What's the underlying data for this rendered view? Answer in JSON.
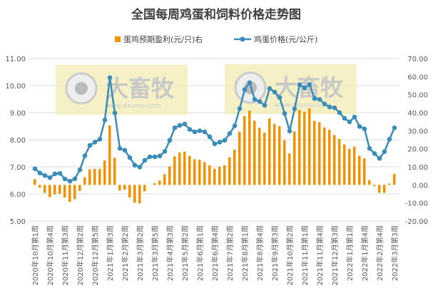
{
  "chart_data": {
    "type": "bar+line",
    "title": "全国每周鸡蛋和饲料价格走势图",
    "legend_position": "top",
    "grid": true,
    "x_tick_labels": [
      "2020年10月第1周",
      "2020年10月第4周",
      "2020年11月第3周",
      "2020年12月第2周",
      "2020年12月第5周",
      "2021年1月第3周",
      "2021年2月第2周",
      "2021年3月第2周",
      "2021年3月第5周",
      "2021年4月第3周",
      "2021年5月第2周",
      "2021年6月第1周",
      "2021年6月第4周",
      "2021年7月第2周",
      "2021年8月第1周",
      "2021年8月第4周",
      "2021年9月第3周",
      "2021年10月第2周",
      "2021年11月第1周",
      "2021年11月第4周",
      "2021年12月第3周",
      "2022年1月第1周",
      "2022年1月第4周",
      "2022年2月第4周",
      "2022年3月第3周"
    ],
    "x_tick_every": 3,
    "left_axis": {
      "ylim": [
        5,
        11
      ],
      "ticks": [
        "5.00",
        "6.00",
        "7.00",
        "8.00",
        "9.00",
        "10.00",
        "11.00"
      ]
    },
    "right_axis": {
      "ylim": [
        -20,
        70
      ],
      "ticks": [
        "-20.00",
        "-10.00",
        "0.00",
        "10.00",
        "20.00",
        "30.00",
        "40.00",
        "50.00",
        "60.00",
        "70.00"
      ]
    },
    "series": [
      {
        "name": "蛋鸡预期盈利(元/只)右",
        "type": "bar",
        "axis": "right",
        "color": "#F39200",
        "values": [
          3.2,
          -1.5,
          -4.4,
          -6.8,
          -5.3,
          -4.9,
          -7.0,
          -9.4,
          -7.9,
          -3.3,
          4.2,
          8.5,
          8.9,
          8.8,
          13.5,
          32.9,
          15.0,
          -3.2,
          -2.6,
          -7.0,
          -9.9,
          -10.3,
          -3.6,
          0,
          0.9,
          2.4,
          5.9,
          10.3,
          15.8,
          17.9,
          18.4,
          16.1,
          14.2,
          13.9,
          12.6,
          10.8,
          8.9,
          10.0,
          10.9,
          15.3,
          19.5,
          29.4,
          38.2,
          41.1,
          35.5,
          31.6,
          28.9,
          36.8,
          33.8,
          32.5,
          24.7,
          17.4,
          29.6,
          41.5,
          40.5,
          42.4,
          35.5,
          34.7,
          31.8,
          30.5,
          27.6,
          25.4,
          22.4,
          20.0,
          21.2,
          16.1,
          14.7,
          2.6,
          -0.7,
          -4.4,
          -4.4,
          0.7,
          6.1
        ]
      },
      {
        "name": "鸡蛋价格(元/公斤)",
        "type": "line",
        "axis": "left",
        "color": "#3A8DB8",
        "values": [
          6.93,
          6.77,
          6.68,
          6.6,
          6.74,
          6.76,
          6.55,
          6.47,
          6.56,
          6.89,
          7.41,
          7.79,
          7.91,
          8.02,
          8.73,
          10.29,
          8.99,
          7.68,
          7.61,
          7.34,
          7.06,
          6.99,
          7.24,
          7.37,
          7.37,
          7.4,
          7.57,
          7.98,
          8.44,
          8.53,
          8.58,
          8.38,
          8.29,
          8.33,
          8.29,
          8.11,
          7.85,
          7.91,
          7.98,
          8.23,
          8.51,
          9.15,
          9.85,
          10.11,
          9.49,
          9.41,
          9.27,
          9.89,
          9.76,
          9.56,
          8.97,
          8.32,
          9.14,
          10.03,
          9.91,
          10.03,
          9.52,
          9.49,
          9.32,
          9.21,
          9.18,
          9.0,
          8.79,
          8.66,
          8.84,
          8.49,
          8.4,
          7.68,
          7.49,
          7.31,
          7.56,
          8.02,
          8.44
        ]
      }
    ]
  },
  "watermark": {
    "brand": "大畜牧",
    "url": "www.dxumu.com"
  }
}
